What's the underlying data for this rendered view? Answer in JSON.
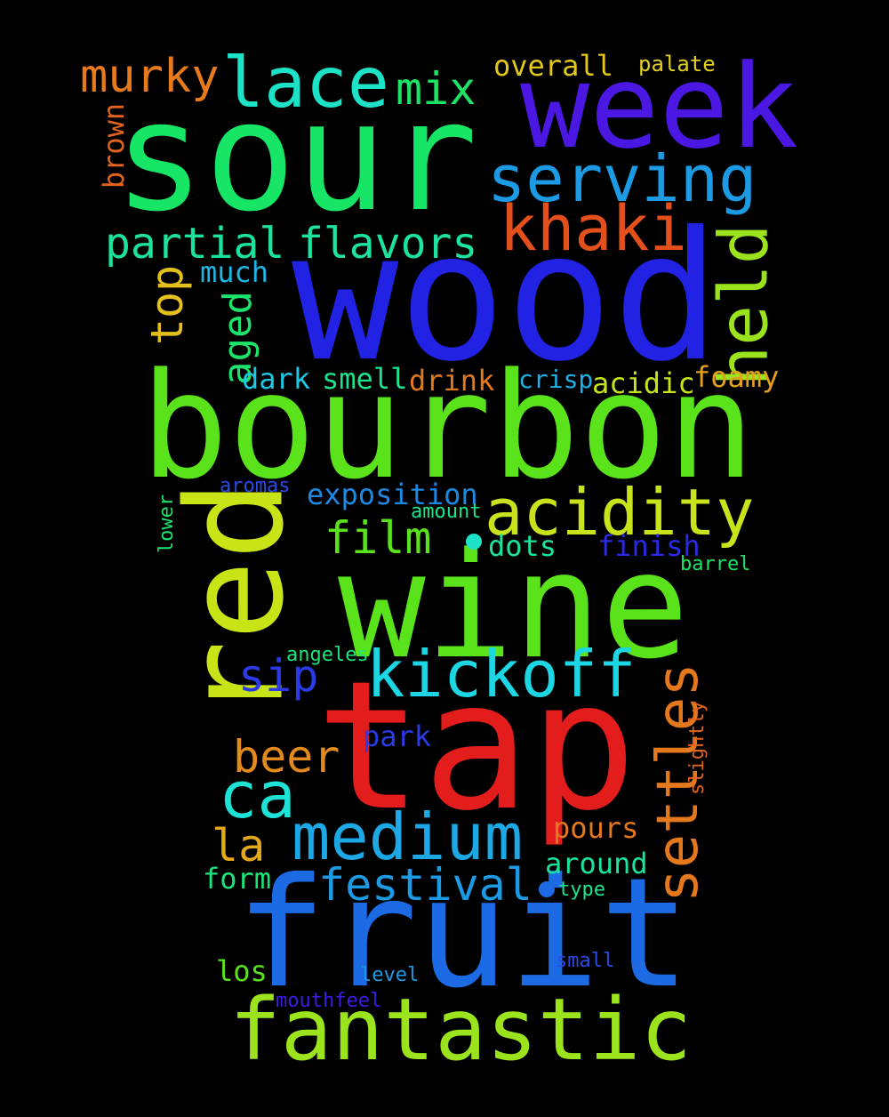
{
  "words": [
    {
      "text": "sour",
      "color": "#16e566"
    },
    {
      "text": "week",
      "color": "#4b18e3"
    },
    {
      "text": "wood",
      "color": "#2222e4"
    },
    {
      "text": "bourbon",
      "color": "#5ae31a"
    },
    {
      "text": "red",
      "color": "#c8e316"
    },
    {
      "text": "wine",
      "color": "#5ae31a"
    },
    {
      "text": "tap",
      "color": "#e31c1c"
    },
    {
      "text": "fruit",
      "color": "#1c6ae4"
    },
    {
      "text": "fantastic",
      "color": "#9be31c"
    },
    {
      "text": "lace",
      "color": "#1ce3c8"
    },
    {
      "text": "murky",
      "color": "#e67a1c"
    },
    {
      "text": "mix",
      "color": "#1ce366"
    },
    {
      "text": "overall",
      "color": "#e3c81c"
    },
    {
      "text": "palate",
      "color": "#e3d01c"
    },
    {
      "text": "serving",
      "color": "#1c9be4"
    },
    {
      "text": "khaki",
      "color": "#e3501c"
    },
    {
      "text": "brown",
      "color": "#e3641c"
    },
    {
      "text": "partial",
      "color": "#1ce39b"
    },
    {
      "text": "flavors",
      "color": "#1ce3a0"
    },
    {
      "text": "held",
      "color": "#9be31c"
    },
    {
      "text": "much",
      "color": "#1cb6e4"
    },
    {
      "text": "top",
      "color": "#e3c01c"
    },
    {
      "text": "aged",
      "color": "#1ce36a"
    },
    {
      "text": "dark",
      "color": "#1cc8e4"
    },
    {
      "text": "smell",
      "color": "#1ce38c"
    },
    {
      "text": "drink",
      "color": "#e3781c"
    },
    {
      "text": "crisp",
      "color": "#1cb0e4"
    },
    {
      "text": "acidic",
      "color": "#c8e31c"
    },
    {
      "text": "foamy",
      "color": "#e3a01c"
    },
    {
      "text": "acidity",
      "color": "#c8e31c"
    },
    {
      "text": "aromas",
      "color": "#2a4ae4"
    },
    {
      "text": "exposition",
      "color": "#1c8ae4"
    },
    {
      "text": "amount",
      "color": "#1ce38c"
    },
    {
      "text": "lower",
      "color": "#1ce36a"
    },
    {
      "text": "film",
      "color": "#5ae31c"
    },
    {
      "text": "dots",
      "color": "#1ce39b"
    },
    {
      "text": "finish",
      "color": "#2a2ae4"
    },
    {
      "text": "barrel",
      "color": "#1ce366"
    },
    {
      "text": "kickoff",
      "color": "#1cd6e4"
    },
    {
      "text": "angeles",
      "color": "#1ce37a"
    },
    {
      "text": "sip",
      "color": "#2a3ae4"
    },
    {
      "text": "settles",
      "color": "#e3781c"
    },
    {
      "text": "slightly",
      "color": "#e3641c"
    },
    {
      "text": "park",
      "color": "#2a3ae4"
    },
    {
      "text": "beer",
      "color": "#e38a1c"
    },
    {
      "text": "ca",
      "color": "#1ce3d6"
    },
    {
      "text": "medium",
      "color": "#1ca8e4"
    },
    {
      "text": "la",
      "color": "#e3a81c"
    },
    {
      "text": "pours",
      "color": "#e3781c"
    },
    {
      "text": "around",
      "color": "#1ce39b"
    },
    {
      "text": "festival",
      "color": "#1c9be4"
    },
    {
      "text": "form",
      "color": "#1ce37a"
    },
    {
      "text": "type",
      "color": "#1ce38c"
    },
    {
      "text": "los",
      "color": "#5ae31c"
    },
    {
      "text": "level",
      "color": "#1c9be4"
    },
    {
      "text": "small",
      "color": "#2a4ae4"
    },
    {
      "text": "mouthfeel",
      "color": "#3a1ce4"
    }
  ],
  "dots": [
    {
      "color": "#1ce3c8"
    },
    {
      "color": "#1c6ae4"
    }
  ]
}
